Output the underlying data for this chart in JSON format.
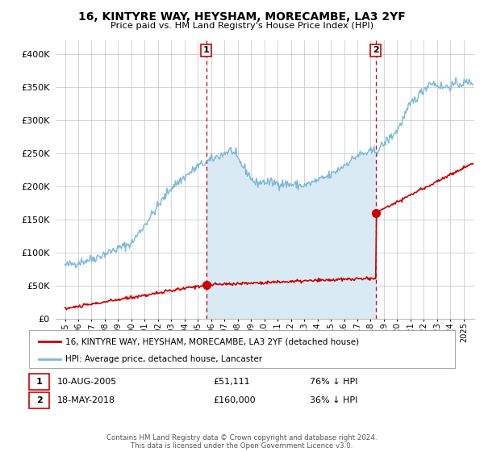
{
  "title": "16, KINTYRE WAY, HEYSHAM, MORECAMBE, LA3 2YF",
  "subtitle": "Price paid vs. HM Land Registry's House Price Index (HPI)",
  "legend_line1": "16, KINTYRE WAY, HEYSHAM, MORECAMBE, LA3 2YF (detached house)",
  "legend_line2": "HPI: Average price, detached house, Lancaster",
  "annotation1_label": "1",
  "annotation1_date": "10-AUG-2005",
  "annotation1_price": "£51,111",
  "annotation1_hpi": "76% ↓ HPI",
  "annotation2_label": "2",
  "annotation2_date": "18-MAY-2018",
  "annotation2_price": "£160,000",
  "annotation2_hpi": "36% ↓ HPI",
  "footer": "Contains HM Land Registry data © Crown copyright and database right 2024.\nThis data is licensed under the Open Government Licence v3.0.",
  "hpi_color": "#7ab8d9",
  "hpi_fill_color": "#daeaf5",
  "price_color": "#cc0000",
  "annotation_color": "#cc0000",
  "background_color": "#ffffff",
  "grid_color": "#cccccc",
  "ylim": [
    0,
    420000
  ],
  "yticks": [
    0,
    50000,
    100000,
    150000,
    200000,
    250000,
    300000,
    350000,
    400000
  ],
  "sale1_year": 2005.62,
  "sale1_price": 51111,
  "sale2_year": 2018.38,
  "sale2_price": 160000,
  "xlim_left": 1994.3,
  "xlim_right": 2025.8
}
